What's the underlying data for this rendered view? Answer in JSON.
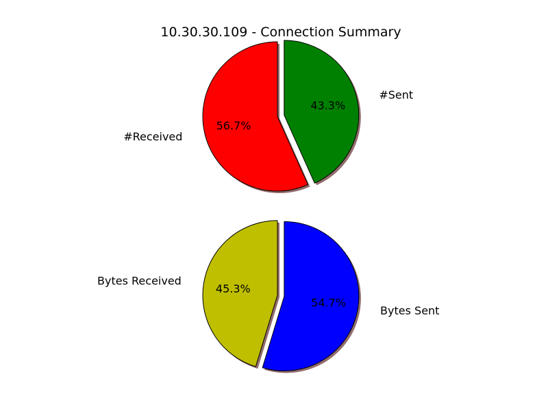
{
  "title": "10.30.30.109 - Connection Summary",
  "colors": {
    "received": "#ff0000",
    "sent": "#008000",
    "bytes_received": "#bfbf00",
    "bytes_sent": "#0000ff",
    "edge": "#000000",
    "shadow": "#7f5454"
  },
  "chart_data": [
    {
      "type": "pie",
      "title": "10.30.30.109 - Connection Summary",
      "labels": [
        "#Received",
        "#Sent"
      ],
      "values": [
        56.7,
        43.3
      ],
      "percent_labels": [
        "56.7%",
        "43.3%"
      ],
      "colors": [
        "#ff0000",
        "#008000"
      ],
      "exploded": [
        false,
        true
      ],
      "shadow": true,
      "start_angle_deg": 90,
      "direction": "counterclockwise"
    },
    {
      "type": "pie",
      "labels": [
        "Bytes Received",
        "Bytes Sent"
      ],
      "values": [
        45.3,
        54.7
      ],
      "percent_labels": [
        "45.3%",
        "54.7%"
      ],
      "colors": [
        "#bfbf00",
        "#0000ff"
      ],
      "exploded": [
        false,
        true
      ],
      "shadow": true,
      "start_angle_deg": 90,
      "direction": "counterclockwise"
    }
  ]
}
